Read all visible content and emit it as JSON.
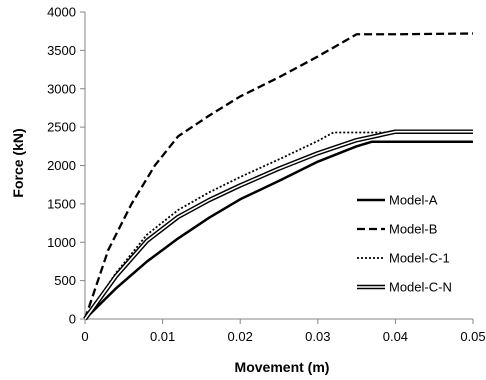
{
  "chart_data": {
    "type": "line",
    "title": "",
    "xlabel": "Movement (m)",
    "ylabel": "Force (kN)",
    "xlim": [
      0,
      0.05
    ],
    "ylim": [
      0,
      4000
    ],
    "x_ticks": [
      0,
      0.01,
      0.02,
      0.03,
      0.04,
      0.05
    ],
    "y_ticks": [
      0,
      500,
      1000,
      1500,
      2000,
      2500,
      3000,
      3500,
      4000
    ],
    "x_tick_labels": [
      "0",
      "0.01",
      "0.02",
      "0.03",
      "0.04",
      "0.05"
    ],
    "y_tick_labels": [
      "0",
      "500",
      "1000",
      "1500",
      "2000",
      "2500",
      "3000",
      "3500",
      "4000"
    ],
    "grid": false,
    "legend_position": "right",
    "series": [
      {
        "name": "Model-A",
        "style": "solid",
        "color": "#000000",
        "points": [
          [
            0,
            0
          ],
          [
            0.004,
            400
          ],
          [
            0.008,
            750
          ],
          [
            0.012,
            1050
          ],
          [
            0.016,
            1320
          ],
          [
            0.02,
            1560
          ],
          [
            0.025,
            1800
          ],
          [
            0.03,
            2050
          ],
          [
            0.035,
            2250
          ],
          [
            0.037,
            2310
          ],
          [
            0.05,
            2310
          ]
        ]
      },
      {
        "name": "Model-B",
        "style": "dashed",
        "color": "#000000",
        "points": [
          [
            0,
            0
          ],
          [
            0.003,
            900
          ],
          [
            0.006,
            1500
          ],
          [
            0.009,
            2000
          ],
          [
            0.012,
            2380
          ],
          [
            0.016,
            2650
          ],
          [
            0.02,
            2900
          ],
          [
            0.025,
            3150
          ],
          [
            0.03,
            3420
          ],
          [
            0.035,
            3710
          ],
          [
            0.04,
            3710
          ],
          [
            0.05,
            3720
          ]
        ]
      },
      {
        "name": "Model-C-1",
        "style": "dotted",
        "color": "#000000",
        "points": [
          [
            0,
            0
          ],
          [
            0.004,
            600
          ],
          [
            0.008,
            1100
          ],
          [
            0.012,
            1420
          ],
          [
            0.016,
            1650
          ],
          [
            0.02,
            1850
          ],
          [
            0.025,
            2080
          ],
          [
            0.03,
            2320
          ],
          [
            0.032,
            2430
          ],
          [
            0.05,
            2430
          ]
        ]
      },
      {
        "name": "Model-C-N",
        "style": "double",
        "color": "#000000",
        "points": [
          [
            0,
            0
          ],
          [
            0.004,
            560
          ],
          [
            0.008,
            1020
          ],
          [
            0.012,
            1330
          ],
          [
            0.016,
            1550
          ],
          [
            0.02,
            1740
          ],
          [
            0.025,
            1960
          ],
          [
            0.03,
            2160
          ],
          [
            0.035,
            2330
          ],
          [
            0.04,
            2440
          ],
          [
            0.05,
            2440
          ]
        ]
      }
    ]
  }
}
